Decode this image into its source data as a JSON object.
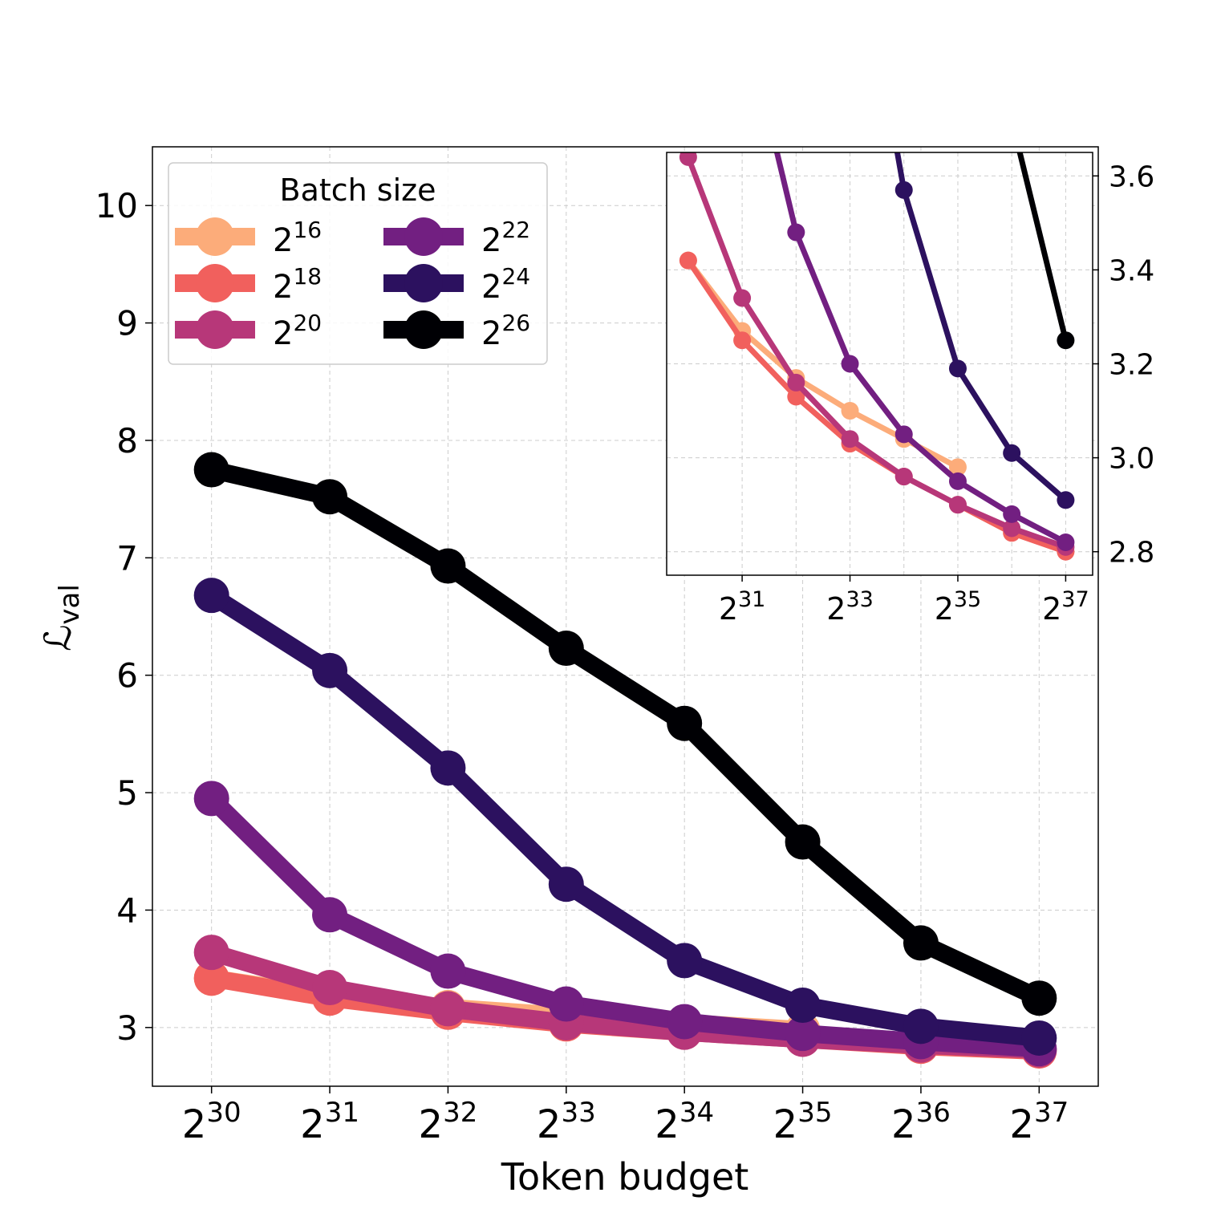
{
  "chart_data": [
    {
      "type": "line",
      "name": "main",
      "xlabel": "Token budget",
      "ylabel": "ℒval",
      "ylabel_main": "ℒ",
      "ylabel_sub": "val",
      "x_scale": "log2",
      "x_exponents": [
        30,
        31,
        32,
        33,
        34,
        35,
        36,
        37
      ],
      "x_tick_base": "2",
      "xlim_exp": [
        29.5,
        37.5
      ],
      "ylim": [
        2.5,
        10.5
      ],
      "yticks": [
        3,
        4,
        5,
        6,
        7,
        8,
        9,
        10
      ],
      "grid": true,
      "legend": {
        "title": "Batch size",
        "location": "top-left",
        "columns": 2
      },
      "series": [
        {
          "name": "2^16",
          "base": "2",
          "exp": "16",
          "color": "#fcac7a",
          "values": [
            3.42,
            3.27,
            3.17,
            3.1,
            3.04,
            2.98,
            null,
            null
          ]
        },
        {
          "name": "2^18",
          "base": "2",
          "exp": "18",
          "color": "#f1605d",
          "values": [
            3.42,
            3.25,
            3.13,
            3.03,
            2.96,
            2.9,
            2.84,
            2.8
          ]
        },
        {
          "name": "2^20",
          "base": "2",
          "exp": "20",
          "color": "#b73779",
          "values": [
            3.64,
            3.34,
            3.16,
            3.04,
            2.96,
            2.9,
            2.85,
            2.81
          ]
        },
        {
          "name": "2^22",
          "base": "2",
          "exp": "22",
          "color": "#721f81",
          "values": [
            4.95,
            3.96,
            3.48,
            3.2,
            3.05,
            2.95,
            2.88,
            2.82
          ]
        },
        {
          "name": "2^24",
          "base": "2",
          "exp": "24",
          "color": "#2c115f",
          "values": [
            6.68,
            6.04,
            5.21,
            4.22,
            3.57,
            3.19,
            3.01,
            2.91
          ]
        },
        {
          "name": "2^26",
          "base": "2",
          "exp": "26",
          "color": "#000004",
          "values": [
            7.75,
            7.52,
            6.93,
            6.23,
            5.59,
            4.58,
            3.72,
            3.25
          ]
        }
      ]
    },
    {
      "type": "line",
      "name": "inset",
      "x_scale": "log2",
      "xlim_exp": [
        29.6,
        37.5
      ],
      "ylim": [
        2.75,
        3.65
      ],
      "yticks": [
        2.8,
        3.0,
        3.2,
        3.4,
        3.6
      ],
      "ytick_labels": [
        "2.8",
        "3.0",
        "3.2",
        "3.4",
        "3.6"
      ],
      "ytick_position": "right",
      "x_tick_exponents": [
        31,
        33,
        35,
        37
      ],
      "x_grid_exponents": [
        31,
        32,
        33,
        34,
        35,
        36,
        37
      ],
      "grid": true
    }
  ]
}
